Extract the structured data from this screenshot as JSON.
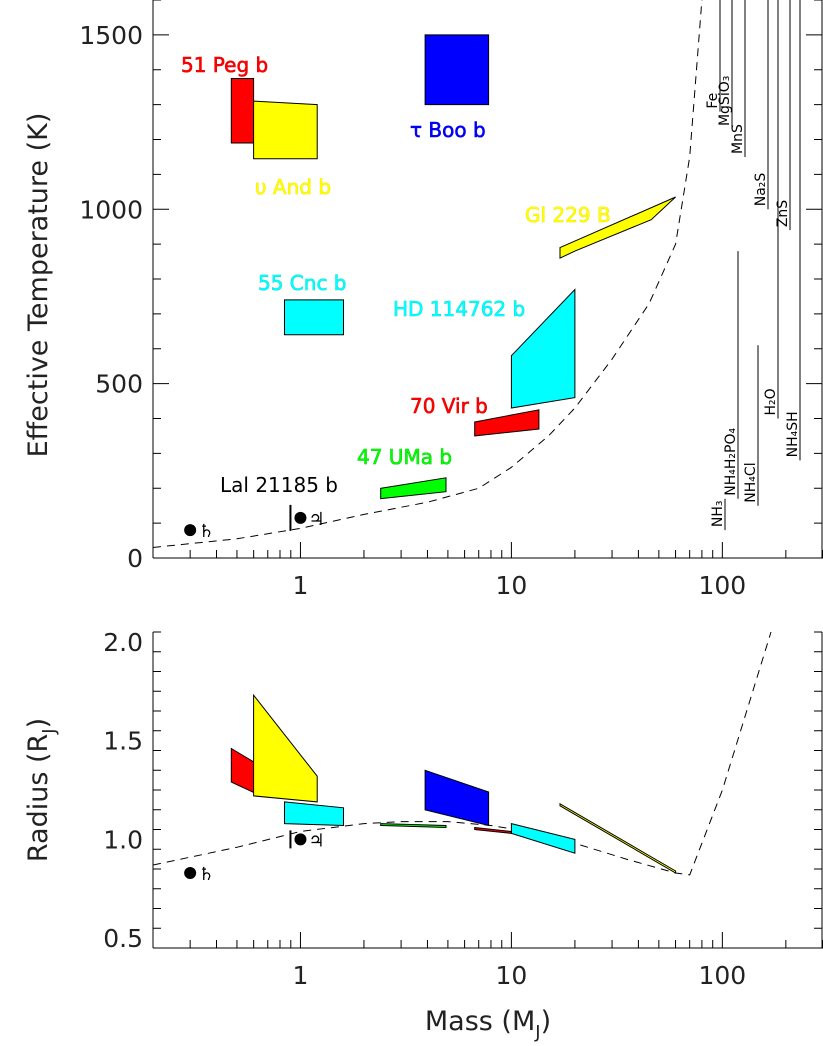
{
  "chart_data": [
    {
      "panel": "top",
      "type": "scatter",
      "ylabel": "Effective Temperature (K)",
      "xlabel": "",
      "x_scale": "log",
      "xlim": [
        0.2,
        300
      ],
      "ylim": [
        0,
        1600
      ],
      "y_ticks": [
        {
          "value": 0,
          "label": "0"
        },
        {
          "value": 500,
          "label": "500"
        },
        {
          "value": 1000,
          "label": "1000"
        },
        {
          "value": 1500,
          "label": "1500"
        }
      ],
      "x_ticks": [
        {
          "value": 1,
          "label": "1"
        },
        {
          "value": 10,
          "label": "10"
        },
        {
          "value": 100,
          "label": "100"
        }
      ],
      "objects": [
        {
          "name": "51 Peg b",
          "fill": "#ff0000",
          "label_color": "#cc0000",
          "polygon": [
            [
              0.47,
              1375
            ],
            [
              0.6,
              1375
            ],
            [
              0.6,
              1190
            ],
            [
              0.47,
              1190
            ]
          ]
        },
        {
          "name": "υ And b",
          "fill": "#ffff00",
          "label_color": "#e6d800",
          "polygon": [
            [
              0.6,
              1310
            ],
            [
              1.2,
              1300
            ],
            [
              1.2,
              1145
            ],
            [
              0.6,
              1145
            ]
          ]
        },
        {
          "name": "τ Boo b",
          "fill": "#0000ff",
          "label_color": "#0000cc",
          "polygon": [
            [
              3.9,
              1500
            ],
            [
              7.8,
              1500
            ],
            [
              7.8,
              1300
            ],
            [
              3.9,
              1300
            ]
          ]
        },
        {
          "name": "Gl 229 B",
          "fill": "#ffff00",
          "label_color": "#e6d800",
          "polygon": [
            [
              17,
              890
            ],
            [
              60,
              1035
            ],
            [
              46,
              970
            ],
            [
              20,
              880
            ],
            [
              17,
              860
            ]
          ]
        },
        {
          "name": "55 Cnc b",
          "fill": "#00ffff",
          "label_color": "#00cccc",
          "polygon": [
            [
              0.84,
              740
            ],
            [
              1.6,
              740
            ],
            [
              1.6,
              640
            ],
            [
              0.84,
              640
            ]
          ]
        },
        {
          "name": "HD 114762 b",
          "fill": "#00ffff",
          "label_color": "#00cccc",
          "polygon": [
            [
              10,
              580
            ],
            [
              20,
              770
            ],
            [
              20,
              460
            ],
            [
              10,
              430
            ]
          ]
        },
        {
          "name": "70 Vir b",
          "fill": "#ff0000",
          "label_color": "#cc0000",
          "polygon": [
            [
              6.7,
              390
            ],
            [
              13.5,
              425
            ],
            [
              13.5,
              370
            ],
            [
              6.7,
              350
            ]
          ]
        },
        {
          "name": "47 UMa b",
          "fill": "#00ff00",
          "label_color": "#00aa00",
          "polygon": [
            [
              2.4,
              200
            ],
            [
              4.9,
              230
            ],
            [
              4.9,
              190
            ],
            [
              2.4,
              170
            ]
          ]
        }
      ],
      "text_labels": [
        {
          "name": "Lal 21185 b",
          "color": "#000000"
        }
      ],
      "solar_system": [
        {
          "name": "Saturn",
          "symbol": "♄",
          "x": 0.3,
          "y": 80
        },
        {
          "name": "Jupiter",
          "symbol": "♃",
          "x": 1.0,
          "y": 115
        }
      ],
      "condensation": [
        {
          "name": "Fe",
          "ymin": 1280,
          "ymax": 1600
        },
        {
          "name": "MgSiO3",
          "ymin": 1230,
          "ymax": 1600
        },
        {
          "name": "MnS",
          "ymin": 1150,
          "ymax": 1600
        },
        {
          "name": "Na2S",
          "ymin": 1000,
          "ymax": 1600
        },
        {
          "name": "ZnS",
          "ymin": 940,
          "ymax": 1600
        },
        {
          "name": "NH4H2PO4",
          "ymin": 170,
          "ymax": 880
        },
        {
          "name": "NH4Cl",
          "ymin": 150,
          "ymax": 610
        },
        {
          "name": "H2O",
          "ymin": 400,
          "ymax": 1600
        },
        {
          "name": "NH4SH",
          "ymin": 280,
          "ymax": 1600
        },
        {
          "name": "NH3",
          "ymin": 80,
          "ymax": 170
        }
      ],
      "dashed_curve": [
        [
          0.2,
          30
        ],
        [
          0.5,
          55
        ],
        [
          1,
          85
        ],
        [
          2,
          125
        ],
        [
          4,
          160
        ],
        [
          7,
          200
        ],
        [
          10,
          260
        ],
        [
          15,
          350
        ],
        [
          20,
          430
        ],
        [
          30,
          570
        ],
        [
          45,
          730
        ],
        [
          60,
          900
        ],
        [
          70,
          1150
        ],
        [
          80,
          1600
        ]
      ]
    },
    {
      "panel": "bottom",
      "type": "scatter",
      "xlabel": "Mass (MJ)",
      "ylabel": "Radius (RJ)",
      "x_scale": "log",
      "xlim": [
        0.2,
        300
      ],
      "ylim": [
        0.45,
        2.05
      ],
      "y_ticks": [
        {
          "value": 0.5,
          "label": "0.5"
        },
        {
          "value": 1.0,
          "label": "1.0"
        },
        {
          "value": 1.5,
          "label": "1.5"
        },
        {
          "value": 2.0,
          "label": "2.0"
        }
      ],
      "x_ticks": [
        {
          "value": 1,
          "label": "1"
        },
        {
          "value": 10,
          "label": "10"
        },
        {
          "value": 100,
          "label": "100"
        }
      ],
      "objects": [
        {
          "name": "51 Peg b",
          "fill": "#ff0000",
          "polygon": [
            [
              0.47,
              1.46
            ],
            [
              0.65,
              1.37
            ],
            [
              0.65,
              1.22
            ],
            [
              0.47,
              1.29
            ]
          ]
        },
        {
          "name": "υ And b",
          "fill": "#ffff00",
          "polygon": [
            [
              0.6,
              1.73
            ],
            [
              1.2,
              1.32
            ],
            [
              1.2,
              1.19
            ],
            [
              0.6,
              1.22
            ]
          ]
        },
        {
          "name": "τ Boo b",
          "fill": "#0000ff",
          "polygon": [
            [
              3.9,
              1.35
            ],
            [
              7.8,
              1.24
            ],
            [
              7.8,
              1.07
            ],
            [
              3.9,
              1.15
            ]
          ]
        },
        {
          "name": "Gl 229 B",
          "fill": "#ffff00",
          "polygon": [
            [
              17,
              1.18
            ],
            [
              60,
              0.84
            ],
            [
              60,
              0.83
            ],
            [
              17,
              1.17
            ]
          ]
        },
        {
          "name": "55 Cnc b",
          "fill": "#00ffff",
          "polygon": [
            [
              0.84,
              1.19
            ],
            [
              1.6,
              1.16
            ],
            [
              1.6,
              1.07
            ],
            [
              0.84,
              1.08
            ]
          ]
        },
        {
          "name": "HD 114762 b",
          "fill": "#00ffff",
          "polygon": [
            [
              10,
              1.08
            ],
            [
              20,
              1.0
            ],
            [
              20,
              0.93
            ],
            [
              10,
              1.03
            ]
          ]
        },
        {
          "name": "70 Vir b",
          "fill": "#ff0000",
          "polygon": [
            [
              6.7,
              1.06
            ],
            [
              10,
              1.04
            ],
            [
              10,
              1.03
            ],
            [
              6.7,
              1.05
            ]
          ]
        },
        {
          "name": "47 UMa b",
          "fill": "#00ff00",
          "polygon": [
            [
              2.4,
              1.08
            ],
            [
              4.9,
              1.07
            ],
            [
              4.9,
              1.06
            ],
            [
              2.4,
              1.07
            ]
          ]
        }
      ],
      "solar_system": [
        {
          "name": "Saturn",
          "symbol": "♄",
          "x": 0.3,
          "y": 0.83
        },
        {
          "name": "Jupiter",
          "symbol": "♃",
          "x": 1.0,
          "y": 1.0
        }
      ],
      "dashed_curve": [
        [
          0.2,
          0.87
        ],
        [
          0.5,
          0.96
        ],
        [
          1,
          1.04
        ],
        [
          2,
          1.08
        ],
        [
          3,
          1.09
        ],
        [
          5,
          1.09
        ],
        [
          8,
          1.07
        ],
        [
          12,
          1.04
        ],
        [
          20,
          0.98
        ],
        [
          35,
          0.9
        ],
        [
          60,
          0.83
        ],
        [
          70,
          0.82
        ],
        [
          100,
          1.25
        ],
        [
          170,
          2.05
        ]
      ]
    }
  ],
  "labels": {
    "top_ylabel": "Effective Temperature (K)",
    "bottom_ylabel_main": "Radius (R",
    "bottom_ylabel_sub": "J",
    "bottom_ylabel_end": ")",
    "xlabel_main": "Mass (M",
    "xlabel_sub": "J",
    "xlabel_end": ")"
  }
}
